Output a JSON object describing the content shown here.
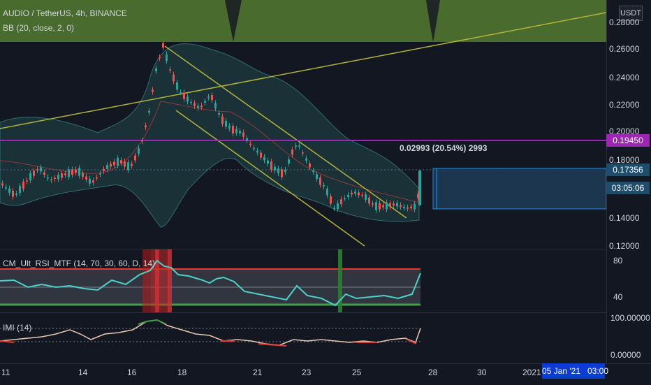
{
  "symbol": "AUDIO / TetherUS, 4h, BINANCE",
  "indicator_bb": "BB (20, close, 2, 0)",
  "currency_button": "USDT",
  "measure_label": "0.02993 (20.54%) 2993",
  "price_axis": [
    "0.28000",
    "0.26000",
    "0.24000",
    "0.22000",
    "0.20000",
    "0.18000",
    "0.14000",
    "0.12000"
  ],
  "price_tags": {
    "line_level": "0.19450",
    "last_price": "0.17356",
    "countdown": "03:05:06"
  },
  "rsi_panel": {
    "title": "CM_Ult_RSI_MTF (14, 70, 30, 60, D, 14)",
    "axis": [
      "80",
      "40"
    ]
  },
  "imi_panel": {
    "title": "IMI (14)",
    "axis": [
      "100.00000",
      "0.00000"
    ]
  },
  "time_axis": [
    "11",
    "14",
    "16",
    "18",
    "21",
    "23",
    "25",
    "28",
    "30",
    "2021"
  ],
  "crosshair_time": "05 Jan '21   03:00",
  "colors": {
    "background": "#131722",
    "bull": "#26a69a",
    "bear": "#ef5350",
    "level_line": "#9c27b0",
    "trend_line": "#b3b33a",
    "bb_fill": "#2a5a5a"
  }
}
